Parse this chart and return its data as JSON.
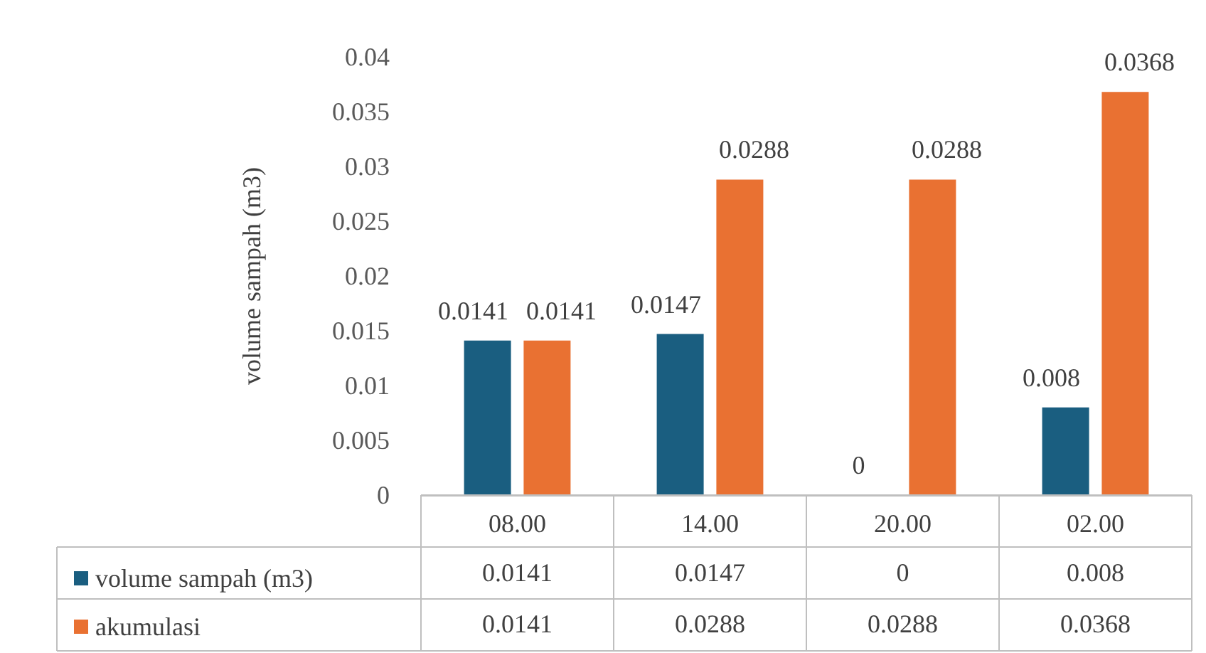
{
  "chart_data": {
    "type": "bar",
    "ylabel": "volume sampah (m3)",
    "categories": [
      "08.00",
      "14.00",
      "20.00",
      "02.00"
    ],
    "series": [
      {
        "name": "volume sampah (m3)",
        "color": "#1a5e80",
        "values": [
          0.0141,
          0.0147,
          0,
          0.008
        ]
      },
      {
        "name": "akumulasi",
        "color": "#e97132",
        "values": [
          0.0141,
          0.0288,
          0.0288,
          0.0368
        ]
      }
    ],
    "ylim": [
      0,
      0.04
    ],
    "yticks": [
      0,
      0.005,
      0.01,
      0.015,
      0.02,
      0.025,
      0.03,
      0.035,
      0.04
    ],
    "grid": false,
    "legend": "bottom",
    "data_labels": true,
    "annotations": [
      "0.0141",
      "0.0147",
      "0",
      "0.008",
      "0.0141",
      "0.0288",
      "0.0288",
      "0.0368"
    ]
  }
}
